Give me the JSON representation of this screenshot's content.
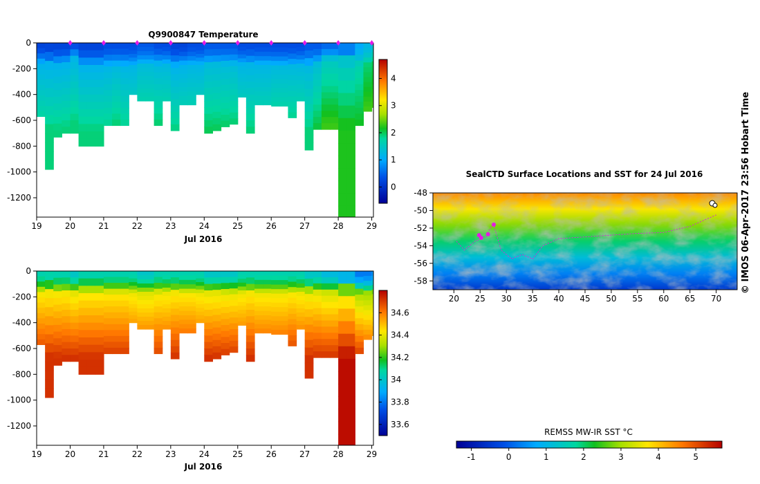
{
  "top_panel": {
    "title": "Q9900847  Temperature",
    "x_ticks": [
      "19",
      "20",
      "21",
      "22",
      "23",
      "24",
      "25",
      "26",
      "27",
      "28",
      "29"
    ],
    "x_label": "Jul 2016",
    "y_ticks": [
      "0",
      "-200",
      "-400",
      "-600",
      "-800",
      "-1000",
      "-1200"
    ],
    "colorbar_ticks": [
      "0",
      "1",
      "2",
      "3",
      "4"
    ]
  },
  "bottom_panel": {
    "title": "",
    "x_ticks": [
      "19",
      "20",
      "21",
      "22",
      "23",
      "24",
      "25",
      "26",
      "27",
      "28",
      "29"
    ],
    "x_label": "Jul 2016",
    "y_ticks": [
      "0",
      "-200",
      "-400",
      "-600",
      "-800",
      "-1000",
      "-1200"
    ],
    "colorbar_ticks": [
      "33.6",
      "33.8",
      "34",
      "34.2",
      "34.4",
      "34.6"
    ]
  },
  "map_panel": {
    "title": "SealCTD Surface Locations and SST for 24 Jul 2016",
    "x_ticks": [
      "20",
      "25",
      "30",
      "35",
      "40",
      "45",
      "50",
      "55",
      "60",
      "65",
      "70"
    ],
    "y_ticks": [
      "-48",
      "-50",
      "-52",
      "-54",
      "-56",
      "-58"
    ],
    "colorbar_label": "REMSS MW-IR SST °C",
    "colorbar_ticks": [
      "-1",
      "0",
      "1",
      "2",
      "3",
      "4",
      "5"
    ]
  },
  "credit": "©  IMOS 06-Apr-2017 23:56 Hobart Time",
  "colors": {
    "marker": "#e619e6",
    "track": "#d62ad6"
  },
  "chart_data": [
    {
      "type": "heatmap",
      "title": "Q9900847  Temperature",
      "xlabel": "Jul 2016",
      "ylabel": "",
      "xlim": [
        19,
        29.05
      ],
      "ylim": [
        -1350,
        0
      ],
      "colorbar_range": [
        -0.6,
        4.7
      ],
      "times": [
        19.0,
        19.25,
        19.5,
        19.75,
        20.0,
        20.25,
        20.5,
        20.75,
        21.0,
        21.25,
        21.5,
        21.75,
        22.0,
        22.25,
        22.5,
        22.75,
        23.0,
        23.25,
        23.5,
        23.75,
        24.0,
        24.25,
        24.5,
        24.75,
        25.0,
        25.25,
        25.5,
        25.75,
        26.0,
        26.25,
        26.5,
        26.75,
        27.0,
        27.25,
        27.5,
        27.75,
        28.0,
        28.25,
        28.5,
        28.75,
        29.0
      ],
      "max_depth": [
        570,
        980,
        730,
        700,
        700,
        800,
        800,
        800,
        640,
        640,
        640,
        400,
        450,
        450,
        640,
        450,
        680,
        480,
        480,
        400,
        700,
        680,
        650,
        630,
        420,
        700,
        480,
        480,
        490,
        490,
        580,
        450,
        830,
        670,
        670,
        670,
        1360,
        1360,
        640,
        530,
        500
      ],
      "mixed_layer_depth": [
        160,
        170,
        170,
        160,
        110,
        180,
        180,
        180,
        180,
        180,
        180,
        180,
        170,
        170,
        170,
        170,
        180,
        170,
        170,
        170,
        170,
        170,
        170,
        170,
        170,
        170,
        170,
        170,
        180,
        180,
        180,
        180,
        180,
        170,
        130,
        130,
        150,
        150,
        170,
        170,
        150
      ],
      "surface_temp": [
        0.2,
        0.2,
        0.2,
        0.2,
        0.3,
        0.2,
        0.2,
        0.2,
        0.3,
        0.3,
        0.3,
        0.3,
        0.4,
        0.4,
        0.3,
        0.3,
        0.2,
        0.2,
        0.3,
        0.3,
        0.4,
        0.4,
        0.4,
        0.4,
        0.3,
        0.3,
        0.3,
        0.3,
        0.3,
        0.3,
        0.3,
        0.3,
        0.4,
        0.4,
        0.5,
        0.5,
        0.6,
        0.6,
        1.0,
        1.2,
        1.4
      ],
      "deep_temp": [
        1.9,
        1.9,
        1.9,
        1.9,
        1.9,
        1.9,
        1.9,
        1.9,
        1.9,
        2.0,
        1.9,
        1.9,
        2.0,
        2.0,
        2.0,
        2.0,
        1.9,
        1.9,
        1.9,
        1.9,
        2.0,
        2.0,
        2.0,
        2.0,
        1.9,
        1.9,
        1.9,
        1.9,
        2.0,
        2.0,
        2.0,
        2.0,
        1.9,
        2.1,
        2.3,
        2.3,
        2.2,
        2.2,
        2.2,
        2.5,
        2.5
      ],
      "profile_times": [
        20,
        21,
        22,
        23,
        24,
        25,
        26,
        27,
        28,
        29
      ]
    },
    {
      "type": "heatmap",
      "title": "",
      "xlabel": "Jul 2016",
      "ylabel": "",
      "xlim": [
        19,
        29.05
      ],
      "ylim": [
        -1350,
        0
      ],
      "colorbar_range": [
        33.5,
        34.8
      ],
      "times": [
        19.0,
        19.25,
        19.5,
        19.75,
        20.0,
        20.25,
        20.5,
        20.75,
        21.0,
        21.25,
        21.5,
        21.75,
        22.0,
        22.25,
        22.5,
        22.75,
        23.0,
        23.25,
        23.5,
        23.75,
        24.0,
        24.25,
        24.5,
        24.75,
        25.0,
        25.25,
        25.5,
        25.75,
        26.0,
        26.25,
        26.5,
        26.75,
        27.0,
        27.25,
        27.5,
        27.75,
        28.0,
        28.25,
        28.5,
        28.75,
        29.0
      ],
      "max_depth": [
        570,
        980,
        730,
        700,
        700,
        800,
        800,
        800,
        640,
        640,
        640,
        400,
        450,
        450,
        640,
        450,
        680,
        480,
        480,
        400,
        700,
        680,
        650,
        630,
        420,
        700,
        480,
        480,
        490,
        490,
        580,
        450,
        830,
        670,
        670,
        670,
        1360,
        1360,
        640,
        530,
        500
      ],
      "surface_salinity": [
        34.05,
        34.05,
        34.05,
        34.05,
        34.0,
        34.05,
        34.05,
        34.05,
        34.05,
        34.05,
        34.05,
        34.05,
        34.0,
        34.0,
        34.05,
        34.05,
        34.05,
        34.05,
        34.05,
        34.05,
        34.0,
        34.0,
        34.0,
        34.0,
        34.05,
        34.05,
        34.05,
        34.05,
        34.05,
        34.05,
        34.05,
        34.05,
        34.0,
        34.0,
        33.95,
        33.95,
        33.9,
        33.9,
        33.8,
        33.8,
        33.85
      ],
      "deep_salinity": [
        34.72,
        34.72,
        34.72,
        34.72,
        34.72,
        34.72,
        34.72,
        34.72,
        34.72,
        34.72,
        34.72,
        34.7,
        34.7,
        34.7,
        34.7,
        34.7,
        34.72,
        34.72,
        34.72,
        34.7,
        34.72,
        34.72,
        34.72,
        34.72,
        34.7,
        34.72,
        34.7,
        34.7,
        34.7,
        34.7,
        34.72,
        34.7,
        34.72,
        34.72,
        34.72,
        34.72,
        34.78,
        34.78,
        34.72,
        34.7,
        34.68
      ]
    },
    {
      "type": "heatmap",
      "title": "SealCTD Surface Locations and SST for 24 Jul 2016",
      "xlabel": "",
      "ylabel": "",
      "xlim": [
        16,
        74
      ],
      "ylim": [
        -59,
        -48
      ],
      "colorbar_label": "REMSS MW-IR SST °C",
      "colorbar_range": [
        -1.4,
        5.7
      ],
      "sst_gradient_north": 4.5,
      "sst_gradient_south": -0.5,
      "track_points": [
        [
          20.5,
          -53.5
        ],
        [
          22,
          -54.5
        ],
        [
          24,
          -53.5
        ],
        [
          26,
          -53
        ],
        [
          27.5,
          -51.5
        ],
        [
          29,
          -54.5
        ],
        [
          31,
          -55.5
        ],
        [
          33,
          -55
        ],
        [
          35,
          -55.5
        ],
        [
          37,
          -54
        ],
        [
          40,
          -53.2
        ],
        [
          45,
          -53
        ],
        [
          50,
          -52.8
        ],
        [
          55,
          -52.6
        ],
        [
          60,
          -52.5
        ],
        [
          65,
          -51.8
        ],
        [
          70,
          -50.5
        ]
      ],
      "surface_locations": [
        [
          24.8,
          -52.8
        ],
        [
          25.2,
          -53.1
        ],
        [
          26.5,
          -52.7
        ],
        [
          27.6,
          -51.6
        ]
      ]
    }
  ]
}
